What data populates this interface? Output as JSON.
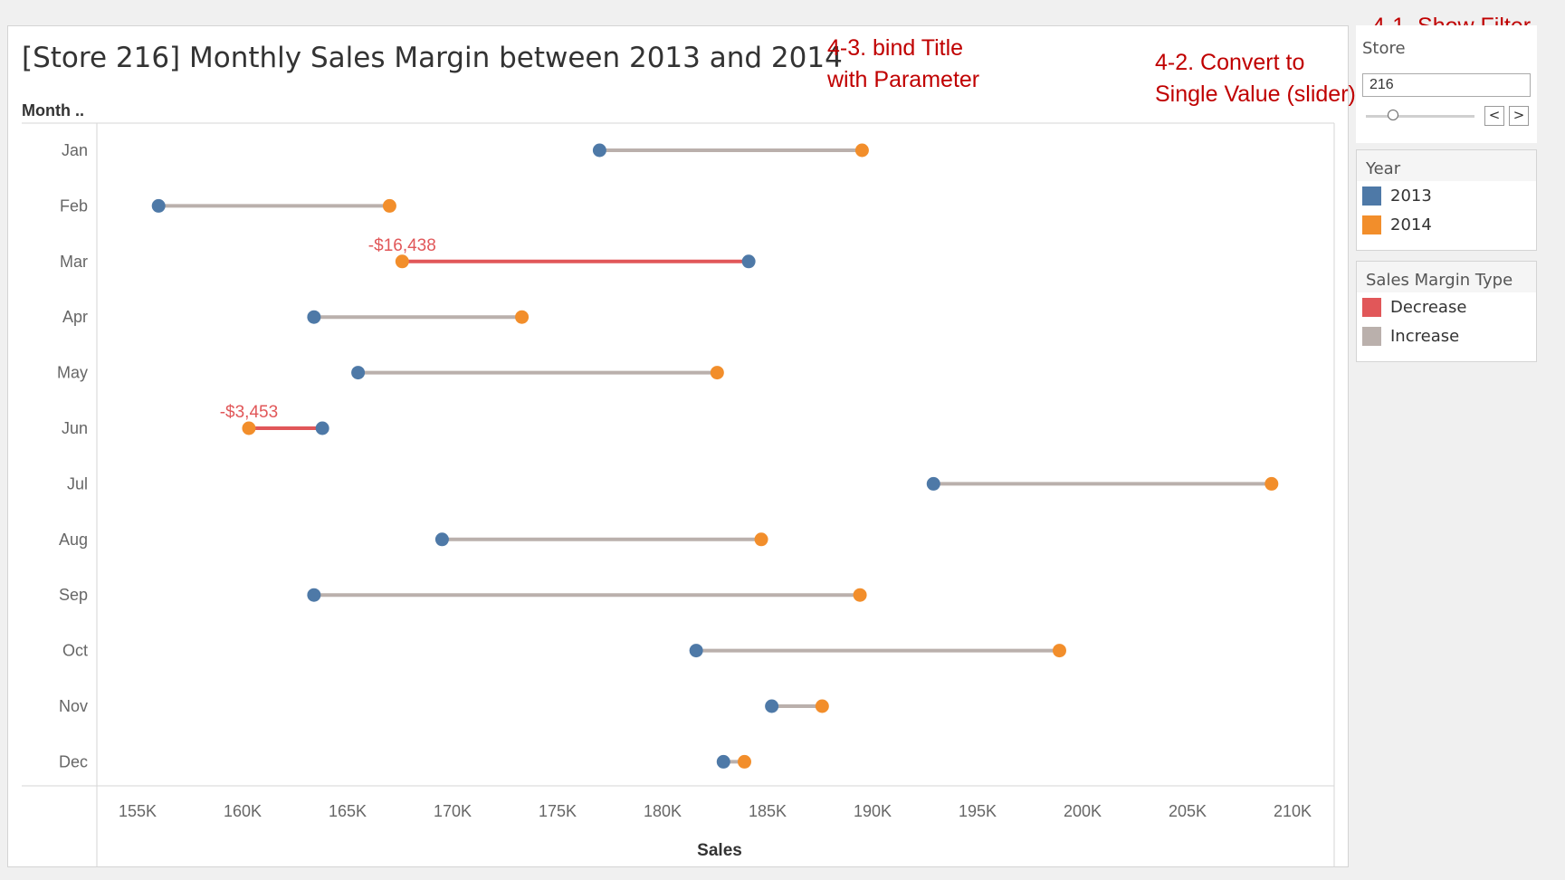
{
  "title": "[Store 216] Monthly Sales Margin between 2013 and 2014",
  "annotations": {
    "bind_title": [
      "4-3. bind Title",
      "with Parameter"
    ],
    "convert_slider": [
      "4-2. Convert to",
      "Single Value (slider)"
    ],
    "show_filter": "4-1. Show Filter"
  },
  "filter": {
    "label": "Store",
    "value": "216",
    "prev_label": "<",
    "next_label": ">"
  },
  "legend_year": {
    "title": "Year",
    "items": [
      {
        "label": "2013",
        "color": "#4e79a7"
      },
      {
        "label": "2014",
        "color": "#f28e2b"
      }
    ]
  },
  "legend_margin": {
    "title": "Sales Margin Type",
    "items": [
      {
        "label": "Decrease",
        "color": "#e15759"
      },
      {
        "label": "Increase",
        "color": "#bab0ac"
      }
    ]
  },
  "chart_data": {
    "type": "dumbbell",
    "title": "[Store 216] Monthly Sales Margin between 2013 and 2014",
    "xlabel": "Sales",
    "ylabel": "Month ..",
    "xlim": [
      152000,
      212000
    ],
    "xticks": [
      155000,
      160000,
      165000,
      170000,
      175000,
      180000,
      185000,
      190000,
      195000,
      200000,
      205000,
      210000
    ],
    "xtick_labels": [
      "155K",
      "160K",
      "165K",
      "170K",
      "175K",
      "180K",
      "185K",
      "190K",
      "195K",
      "200K",
      "205K",
      "210K"
    ],
    "categories": [
      "Jan",
      "Feb",
      "Mar",
      "Apr",
      "May",
      "Jun",
      "Jul",
      "Aug",
      "Sep",
      "Oct",
      "Nov",
      "Dec"
    ],
    "series": [
      {
        "name": "2013",
        "color": "#4e79a7",
        "values": [
          177000,
          156000,
          184100,
          163400,
          165500,
          163800,
          192900,
          169500,
          163400,
          181600,
          185200,
          182900
        ]
      },
      {
        "name": "2014",
        "color": "#f28e2b",
        "values": [
          189500,
          167000,
          167600,
          173300,
          182600,
          160300,
          209000,
          184700,
          189400,
          198900,
          187600,
          183900
        ]
      }
    ],
    "margin_colors": {
      "decrease": "#e15759",
      "increase": "#bab0ac"
    },
    "labels": {
      "Mar": "-$16,438",
      "Jun": "-$3,453"
    },
    "grid": false
  }
}
